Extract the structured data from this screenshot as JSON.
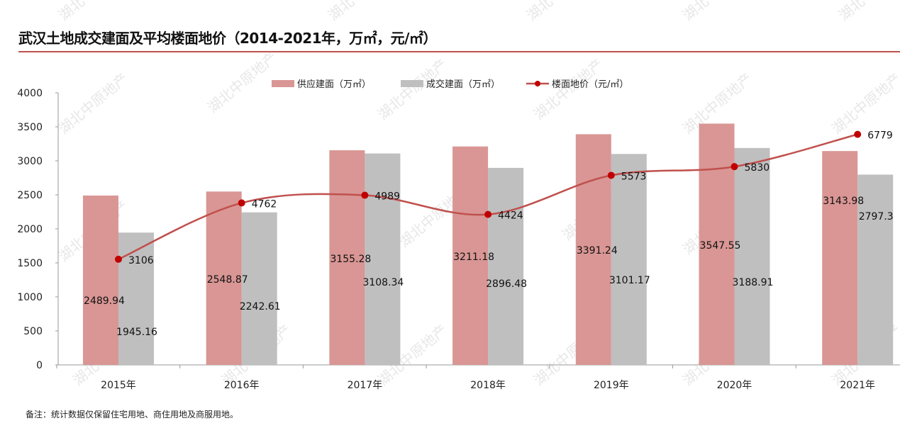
{
  "title": "武汉土地成交建面及平均楼面地价（2014-2021年，万㎡，元/㎡）",
  "note": "备注：统计数据仅保留住宅用地、商住用地及商服用地。",
  "watermark": "湖北中原地产",
  "chart_data": {
    "type": "bar",
    "categories": [
      "2015年",
      "2016年",
      "2017年",
      "2018年",
      "2019年",
      "2020年",
      "2021年"
    ],
    "series": [
      {
        "name": "供应建面（万㎡）",
        "type": "bar",
        "color": "#d99694",
        "values": [
          2489.94,
          2548.87,
          3155.28,
          3211.18,
          3391.24,
          3547.55,
          3143.98
        ],
        "labels": [
          "2489.94",
          "2548.87",
          "3155.28",
          "3211.18",
          "3391.24",
          "3547.55",
          "3143.98"
        ]
      },
      {
        "name": "成交建面（万㎡）",
        "type": "bar",
        "color": "#bfbfbf",
        "values": [
          1945.16,
          2242.61,
          3108.34,
          2896.48,
          3101.17,
          3188.91,
          2797.3
        ],
        "labels": [
          "1945.16",
          "2242.61",
          "3108.34",
          "2896.48",
          "3101.17",
          "3188.91",
          "2797.3"
        ]
      },
      {
        "name": "楼面地价（元/㎡）",
        "type": "line",
        "axis": "secondary",
        "color": "#c0504d",
        "values": [
          3106,
          4762,
          4989,
          4424,
          5573,
          5830,
          6779
        ],
        "labels": [
          "3106",
          "4762",
          "4989",
          "4424",
          "5573",
          "5830",
          "6779"
        ]
      }
    ],
    "yticks": [
      "0",
      "500",
      "1000",
      "1500",
      "2000",
      "2500",
      "3000",
      "3500",
      "4000"
    ],
    "ylim": [
      0,
      4000
    ],
    "y2lim": [
      0,
      8000
    ],
    "legend": "top",
    "grid": false
  }
}
